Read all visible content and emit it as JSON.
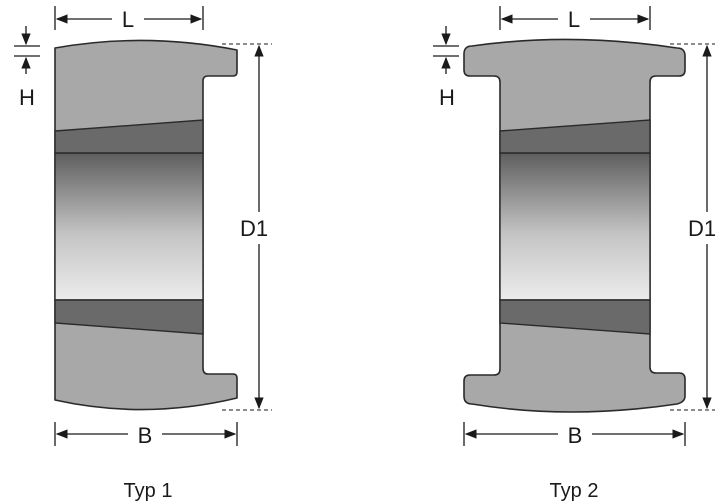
{
  "labels": {
    "l": "L",
    "h": "H",
    "d1": "D1",
    "b": "B"
  },
  "captions": {
    "type1": "Typ 1",
    "type2": "Typ 2"
  },
  "colors": {
    "body": "#a8a8a8",
    "taper": "#6a6a6a",
    "bore_light": "#e8e8e8",
    "bore_dark": "#5e5e5e",
    "line": "#1a1a1a"
  }
}
